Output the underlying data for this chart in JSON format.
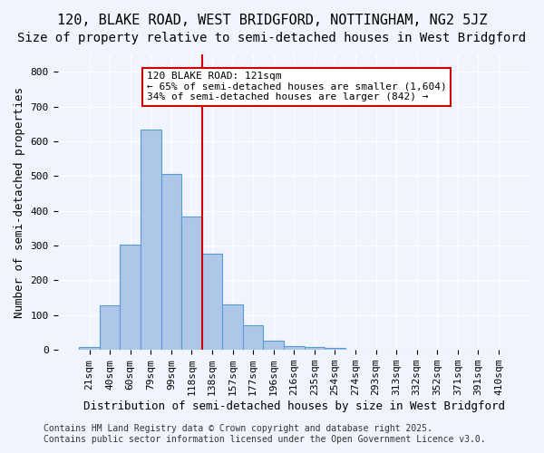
{
  "title": "120, BLAKE ROAD, WEST BRIDGFORD, NOTTINGHAM, NG2 5JZ",
  "subtitle": "Size of property relative to semi-detached houses in West Bridgford",
  "xlabel": "Distribution of semi-detached houses by size in West Bridgford",
  "ylabel": "Number of semi-detached properties",
  "bin_labels": [
    "21sqm",
    "40sqm",
    "60sqm",
    "79sqm",
    "99sqm",
    "118sqm",
    "138sqm",
    "157sqm",
    "177sqm",
    "196sqm",
    "216sqm",
    "235sqm",
    "254sqm",
    "274sqm",
    "293sqm",
    "313sqm",
    "332sqm",
    "352sqm",
    "371sqm",
    "391sqm",
    "410sqm"
  ],
  "bin_values": [
    8,
    128,
    303,
    635,
    505,
    383,
    278,
    130,
    70,
    27,
    10,
    8,
    5,
    0,
    0,
    0,
    0,
    0,
    0,
    0,
    0
  ],
  "bar_color": "#aec6e8",
  "bar_edge_color": "#5b9bd5",
  "vline_x": 5.5,
  "vline_color": "#cc0000",
  "annotation_title": "120 BLAKE ROAD: 121sqm",
  "annotation_line1": "← 65% of semi-detached houses are smaller (1,604)",
  "annotation_line2": "34% of semi-detached houses are larger (842) →",
  "annotation_box_color": "#ffffff",
  "annotation_box_edge": "#cc0000",
  "ylim": [
    0,
    850
  ],
  "yticks": [
    0,
    100,
    200,
    300,
    400,
    500,
    600,
    700,
    800
  ],
  "footer_line1": "Contains HM Land Registry data © Crown copyright and database right 2025.",
  "footer_line2": "Contains public sector information licensed under the Open Government Licence v3.0.",
  "bg_color": "#f0f4fc",
  "grid_color": "#ffffff",
  "title_fontsize": 11,
  "subtitle_fontsize": 10,
  "axis_label_fontsize": 9,
  "tick_fontsize": 8,
  "annotation_fontsize": 8,
  "footer_fontsize": 7
}
